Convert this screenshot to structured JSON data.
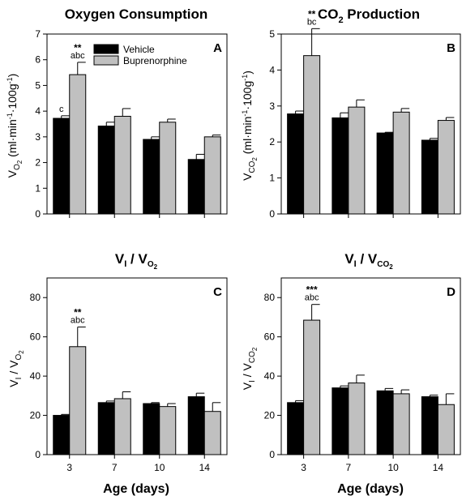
{
  "xlabel": "Age (days)",
  "legend": [
    {
      "label": "Vehicle",
      "color": "#000000"
    },
    {
      "label": "Buprenorphine",
      "color": "#c0c0c0"
    }
  ],
  "chart_data": [
    {
      "type": "bar",
      "panel": "A",
      "title": "Oxygen Consumption",
      "ylabel": "VO2 (ml·min-1·100g-1)",
      "categories": [
        "3",
        "7",
        "10",
        "14"
      ],
      "ylim": [
        0,
        7
      ],
      "yticks": [
        0,
        1,
        2,
        3,
        4,
        5,
        6,
        7
      ],
      "series": [
        {
          "name": "Vehicle",
          "values": [
            3.72,
            3.42,
            2.9,
            2.12
          ],
          "errors": [
            0.1,
            0.15,
            0.1,
            0.2
          ],
          "color": "#000000"
        },
        {
          "name": "Buprenorphine",
          "values": [
            5.42,
            3.8,
            3.57,
            3.0
          ],
          "errors": [
            0.48,
            0.3,
            0.12,
            0.07
          ],
          "color": "#c0c0c0"
        }
      ],
      "annotations": [
        {
          "series": 0,
          "index": 0,
          "stars": "",
          "letters": "c"
        },
        {
          "series": 1,
          "index": 0,
          "stars": "**",
          "letters": "abc"
        }
      ]
    },
    {
      "type": "bar",
      "panel": "B",
      "title": "CO2 Production",
      "ylabel": "VCO2 (ml·min-1·100g-1)",
      "categories": [
        "3",
        "7",
        "10",
        "14"
      ],
      "ylim": [
        0,
        5
      ],
      "yticks": [
        0,
        1,
        2,
        3,
        4,
        5
      ],
      "series": [
        {
          "name": "Vehicle",
          "values": [
            2.78,
            2.67,
            2.25,
            2.05
          ],
          "errors": [
            0.08,
            0.14,
            0.02,
            0.05
          ],
          "color": "#000000"
        },
        {
          "name": "Buprenorphine",
          "values": [
            4.4,
            2.97,
            2.83,
            2.6
          ],
          "errors": [
            0.75,
            0.2,
            0.1,
            0.08
          ],
          "color": "#c0c0c0"
        }
      ],
      "annotations": [
        {
          "series": 1,
          "index": 0,
          "stars": "**",
          "letters": "bc"
        }
      ]
    },
    {
      "type": "bar",
      "panel": "C",
      "title": "VI / VO2",
      "ylabel": "VI / VO2",
      "categories": [
        "3",
        "7",
        "10",
        "14"
      ],
      "ylim": [
        0,
        90
      ],
      "yticks": [
        0,
        20,
        40,
        60,
        80
      ],
      "series": [
        {
          "name": "Vehicle",
          "values": [
            20,
            26.5,
            26,
            29.5
          ],
          "errors": [
            0.5,
            0.8,
            0.5,
            1.8
          ],
          "color": "#000000"
        },
        {
          "name": "Buprenorphine",
          "values": [
            55,
            28.5,
            24.5,
            22
          ],
          "errors": [
            10,
            3.5,
            1.5,
            4.5
          ],
          "color": "#c0c0c0"
        }
      ],
      "annotations": [
        {
          "series": 1,
          "index": 0,
          "stars": "**",
          "letters": "abc"
        }
      ]
    },
    {
      "type": "bar",
      "panel": "D",
      "title": "VI / VCO2",
      "ylabel": "VI / VCO2",
      "categories": [
        "3",
        "7",
        "10",
        "14"
      ],
      "ylim": [
        0,
        90
      ],
      "yticks": [
        0,
        20,
        40,
        60,
        80
      ],
      "series": [
        {
          "name": "Vehicle",
          "values": [
            26.5,
            34,
            32.5,
            29.5
          ],
          "errors": [
            1,
            1,
            1.2,
            0.8
          ],
          "color": "#000000"
        },
        {
          "name": "Buprenorphine",
          "values": [
            68.5,
            36.5,
            31,
            25.5
          ],
          "errors": [
            8,
            4,
            2,
            5.5
          ],
          "color": "#c0c0c0"
        }
      ],
      "annotations": [
        {
          "series": 1,
          "index": 0,
          "stars": "***",
          "letters": "abc"
        }
      ]
    }
  ]
}
